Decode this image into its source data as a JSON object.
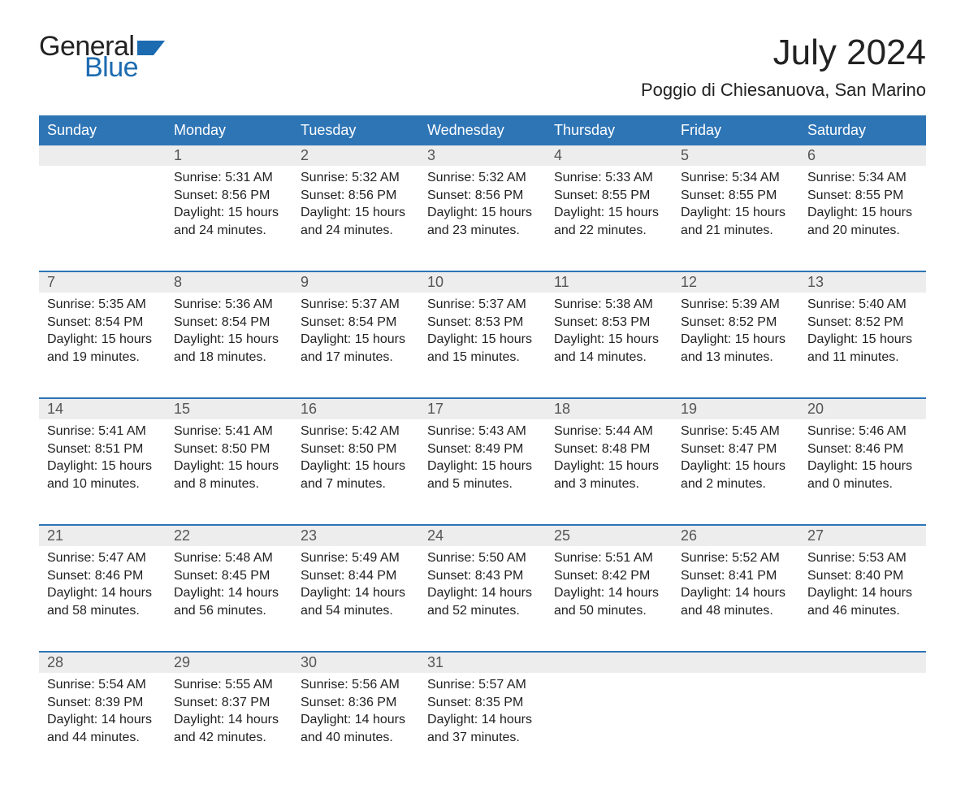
{
  "logo": {
    "text1": "General",
    "text2": "Blue",
    "flag_color": "#1c6bb0"
  },
  "title": "July 2024",
  "location": "Poggio di Chiesanuova, San Marino",
  "colors": {
    "header_bg": "#2e75b6",
    "header_text": "#ffffff",
    "daynum_bg": "#ededed",
    "row_border": "#2e75b6",
    "body_text": "#222222"
  },
  "weekdays": [
    "Sunday",
    "Monday",
    "Tuesday",
    "Wednesday",
    "Thursday",
    "Friday",
    "Saturday"
  ],
  "weeks": [
    [
      null,
      {
        "n": "1",
        "sr": "5:31 AM",
        "ss": "8:56 PM",
        "dl": "15 hours and 24 minutes."
      },
      {
        "n": "2",
        "sr": "5:32 AM",
        "ss": "8:56 PM",
        "dl": "15 hours and 24 minutes."
      },
      {
        "n": "3",
        "sr": "5:32 AM",
        "ss": "8:56 PM",
        "dl": "15 hours and 23 minutes."
      },
      {
        "n": "4",
        "sr": "5:33 AM",
        "ss": "8:55 PM",
        "dl": "15 hours and 22 minutes."
      },
      {
        "n": "5",
        "sr": "5:34 AM",
        "ss": "8:55 PM",
        "dl": "15 hours and 21 minutes."
      },
      {
        "n": "6",
        "sr": "5:34 AM",
        "ss": "8:55 PM",
        "dl": "15 hours and 20 minutes."
      }
    ],
    [
      {
        "n": "7",
        "sr": "5:35 AM",
        "ss": "8:54 PM",
        "dl": "15 hours and 19 minutes."
      },
      {
        "n": "8",
        "sr": "5:36 AM",
        "ss": "8:54 PM",
        "dl": "15 hours and 18 minutes."
      },
      {
        "n": "9",
        "sr": "5:37 AM",
        "ss": "8:54 PM",
        "dl": "15 hours and 17 minutes."
      },
      {
        "n": "10",
        "sr": "5:37 AM",
        "ss": "8:53 PM",
        "dl": "15 hours and 15 minutes."
      },
      {
        "n": "11",
        "sr": "5:38 AM",
        "ss": "8:53 PM",
        "dl": "15 hours and 14 minutes."
      },
      {
        "n": "12",
        "sr": "5:39 AM",
        "ss": "8:52 PM",
        "dl": "15 hours and 13 minutes."
      },
      {
        "n": "13",
        "sr": "5:40 AM",
        "ss": "8:52 PM",
        "dl": "15 hours and 11 minutes."
      }
    ],
    [
      {
        "n": "14",
        "sr": "5:41 AM",
        "ss": "8:51 PM",
        "dl": "15 hours and 10 minutes."
      },
      {
        "n": "15",
        "sr": "5:41 AM",
        "ss": "8:50 PM",
        "dl": "15 hours and 8 minutes."
      },
      {
        "n": "16",
        "sr": "5:42 AM",
        "ss": "8:50 PM",
        "dl": "15 hours and 7 minutes."
      },
      {
        "n": "17",
        "sr": "5:43 AM",
        "ss": "8:49 PM",
        "dl": "15 hours and 5 minutes."
      },
      {
        "n": "18",
        "sr": "5:44 AM",
        "ss": "8:48 PM",
        "dl": "15 hours and 3 minutes."
      },
      {
        "n": "19",
        "sr": "5:45 AM",
        "ss": "8:47 PM",
        "dl": "15 hours and 2 minutes."
      },
      {
        "n": "20",
        "sr": "5:46 AM",
        "ss": "8:46 PM",
        "dl": "15 hours and 0 minutes."
      }
    ],
    [
      {
        "n": "21",
        "sr": "5:47 AM",
        "ss": "8:46 PM",
        "dl": "14 hours and 58 minutes."
      },
      {
        "n": "22",
        "sr": "5:48 AM",
        "ss": "8:45 PM",
        "dl": "14 hours and 56 minutes."
      },
      {
        "n": "23",
        "sr": "5:49 AM",
        "ss": "8:44 PM",
        "dl": "14 hours and 54 minutes."
      },
      {
        "n": "24",
        "sr": "5:50 AM",
        "ss": "8:43 PM",
        "dl": "14 hours and 52 minutes."
      },
      {
        "n": "25",
        "sr": "5:51 AM",
        "ss": "8:42 PM",
        "dl": "14 hours and 50 minutes."
      },
      {
        "n": "26",
        "sr": "5:52 AM",
        "ss": "8:41 PM",
        "dl": "14 hours and 48 minutes."
      },
      {
        "n": "27",
        "sr": "5:53 AM",
        "ss": "8:40 PM",
        "dl": "14 hours and 46 minutes."
      }
    ],
    [
      {
        "n": "28",
        "sr": "5:54 AM",
        "ss": "8:39 PM",
        "dl": "14 hours and 44 minutes."
      },
      {
        "n": "29",
        "sr": "5:55 AM",
        "ss": "8:37 PM",
        "dl": "14 hours and 42 minutes."
      },
      {
        "n": "30",
        "sr": "5:56 AM",
        "ss": "8:36 PM",
        "dl": "14 hours and 40 minutes."
      },
      {
        "n": "31",
        "sr": "5:57 AM",
        "ss": "8:35 PM",
        "dl": "14 hours and 37 minutes."
      },
      null,
      null,
      null
    ]
  ],
  "labels": {
    "sunrise": "Sunrise: ",
    "sunset": "Sunset: ",
    "daylight": "Daylight: "
  }
}
